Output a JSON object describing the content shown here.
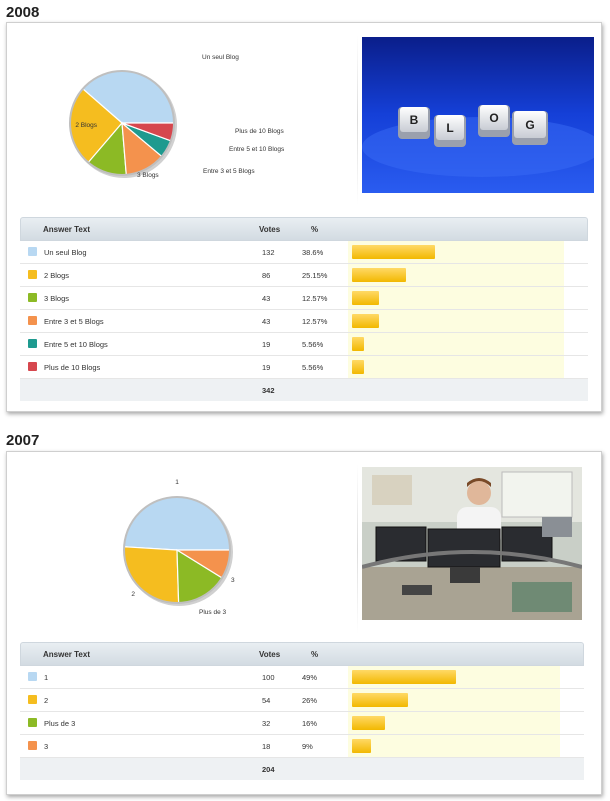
{
  "chart_data": [
    {
      "type": "pie",
      "year": "2008",
      "slices": [
        {
          "label": "Un seul Blog",
          "value": 132,
          "pct": "38.6%",
          "color": "#b8d8f2"
        },
        {
          "label": "2 Blogs",
          "value": 86,
          "pct": "25.15%",
          "color": "#f5bd1f"
        },
        {
          "label": "3 Blogs",
          "value": 43,
          "pct": "12.57%",
          "color": "#8cba25"
        },
        {
          "label": "Entre 3 et 5 Blogs",
          "value": 43,
          "pct": "12.57%",
          "color": "#f4924d"
        },
        {
          "label": "Entre 5 et 10 Blogs",
          "value": 19,
          "pct": "5.56%",
          "color": "#1e9a8f"
        },
        {
          "label": "Plus de 10 Blogs",
          "value": 19,
          "pct": "5.56%",
          "color": "#d6474e"
        }
      ],
      "total": "342"
    },
    {
      "type": "pie",
      "year": "2007",
      "slices": [
        {
          "label": "1",
          "value": 100,
          "pct": "49%",
          "color": "#b8d8f2"
        },
        {
          "label": "2",
          "value": 54,
          "pct": "26%",
          "color": "#f5bd1f"
        },
        {
          "label": "Plus de 3",
          "value": 32,
          "pct": "16%",
          "color": "#8cba25"
        },
        {
          "label": "3",
          "value": 18,
          "pct": "9%",
          "color": "#f4924d"
        }
      ],
      "total": "204"
    }
  ],
  "table_headers": {
    "answer": "Answer Text",
    "votes": "Votes",
    "pct": "%"
  },
  "blog_keys": [
    "B",
    "L",
    "O",
    "G"
  ],
  "icons": {
    "photo_2008": "blog-keyboard-keys-image",
    "photo_2007": "man-at-desk-with-monitors-image"
  }
}
